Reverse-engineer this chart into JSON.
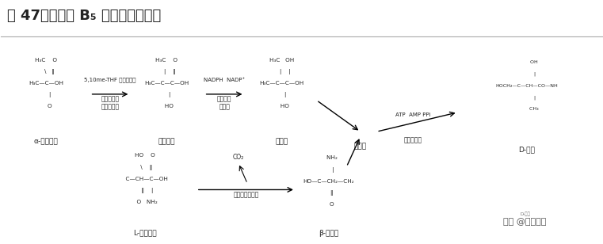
{
  "title": "图 47：维生素 B₅ 的生物合成途径",
  "bg_color": "#ffffff",
  "text_color": "#222222",
  "watermark": "头条 @未来智库",
  "watermark_sub": "D-泛酸",
  "fontsize_title": 13,
  "fontsize_label": 6.5,
  "fontsize_enzyme": 5.5,
  "fontsize_watermark": 8
}
